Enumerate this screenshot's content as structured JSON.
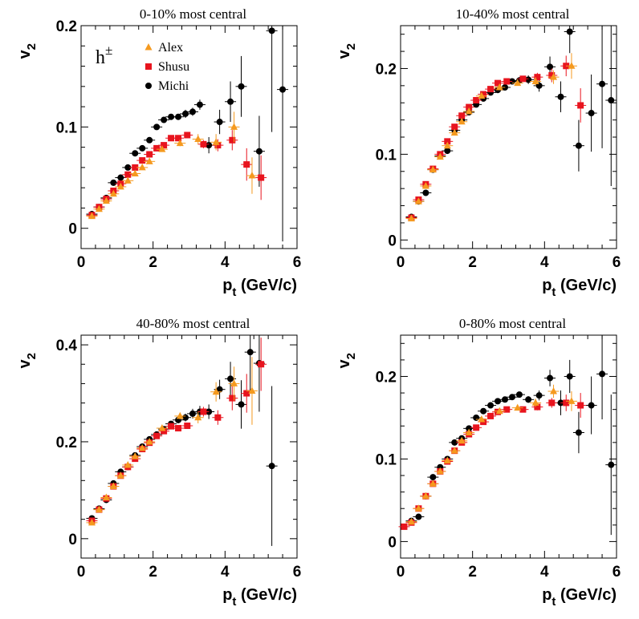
{
  "chart_data": [
    {
      "type": "scatter",
      "title": "0-10% most central",
      "xlabel": "p_t (GeV/c)",
      "ylabel": "v_2",
      "xlim": [
        0,
        6
      ],
      "ylim": [
        -0.02,
        0.2
      ],
      "xticks": [
        "0",
        "2",
        "4",
        "6"
      ],
      "yticks": [
        "0",
        "0.1",
        "0.2"
      ],
      "ytick_values": [
        0,
        0.1,
        0.2
      ],
      "annotation": "h±",
      "legend": {
        "position": "top-left",
        "entries": [
          "Alex",
          "Shusu",
          "Michi"
        ]
      },
      "series": [
        {
          "name": "Alex",
          "marker": "triangle",
          "color": "#f59a1f",
          "x": [
            0.3,
            0.5,
            0.7,
            0.9,
            1.1,
            1.3,
            1.5,
            1.7,
            1.9,
            2.25,
            2.75,
            3.25,
            3.75,
            4.25,
            4.75
          ],
          "y": [
            0.012,
            0.019,
            0.027,
            0.034,
            0.041,
            0.047,
            0.054,
            0.06,
            0.066,
            0.078,
            0.084,
            0.088,
            0.085,
            0.1,
            0.052
          ],
          "err": [
            0.001,
            0.001,
            0.001,
            0.001,
            0.001,
            0.001,
            0.001,
            0.001,
            0.002,
            0.002,
            0.003,
            0.005,
            0.008,
            0.015,
            0.018
          ]
        },
        {
          "name": "Shusu",
          "marker": "square",
          "color": "#e8141e",
          "x": [
            0.3,
            0.5,
            0.7,
            0.9,
            1.1,
            1.3,
            1.5,
            1.7,
            1.9,
            2.1,
            2.3,
            2.5,
            2.7,
            2.95,
            3.4,
            3.8,
            4.2,
            4.6,
            5.0
          ],
          "y": [
            0.013,
            0.021,
            0.029,
            0.037,
            0.044,
            0.053,
            0.06,
            0.067,
            0.073,
            0.079,
            0.082,
            0.089,
            0.089,
            0.092,
            0.083,
            0.082,
            0.087,
            0.063,
            0.05
          ],
          "err": [
            0.001,
            0.001,
            0.001,
            0.001,
            0.001,
            0.001,
            0.001,
            0.002,
            0.002,
            0.002,
            0.002,
            0.003,
            0.003,
            0.003,
            0.004,
            0.006,
            0.01,
            0.016,
            0.022
          ]
        },
        {
          "name": "Michi",
          "marker": "circle",
          "color": "#000000",
          "x": [
            0.3,
            0.5,
            0.7,
            0.9,
            1.1,
            1.3,
            1.5,
            1.7,
            1.9,
            2.1,
            2.3,
            2.5,
            2.7,
            2.9,
            3.1,
            3.3,
            3.55,
            3.85,
            4.15,
            4.45,
            4.95,
            5.3,
            5.6
          ],
          "y": [
            0.014,
            0.021,
            0.03,
            0.045,
            0.05,
            0.06,
            0.074,
            0.079,
            0.087,
            0.1,
            0.107,
            0.11,
            0.11,
            0.113,
            0.115,
            0.122,
            0.082,
            0.105,
            0.125,
            0.14,
            0.076,
            0.195,
            0.137
          ],
          "err": [
            0.001,
            0.001,
            0.001,
            0.001,
            0.001,
            0.001,
            0.002,
            0.002,
            0.002,
            0.002,
            0.002,
            0.003,
            0.003,
            0.004,
            0.004,
            0.005,
            0.008,
            0.012,
            0.02,
            0.03,
            0.035,
            0.1,
            0.15
          ]
        }
      ]
    },
    {
      "type": "scatter",
      "title": "10-40% most central",
      "xlabel": "p_t (GeV/c)",
      "ylabel": "v_2",
      "xlim": [
        0,
        6
      ],
      "ylim": [
        -0.01,
        0.25
      ],
      "xticks": [
        "0",
        "2",
        "4",
        "6"
      ],
      "yticks": [
        "0",
        "0.1",
        "0.2"
      ],
      "ytick_values": [
        0,
        0.1,
        0.2
      ],
      "series": [
        {
          "name": "Alex",
          "marker": "triangle",
          "color": "#f59a1f",
          "x": [
            0.3,
            0.5,
            0.7,
            0.9,
            1.1,
            1.3,
            1.5,
            1.7,
            1.9,
            2.25,
            2.75,
            3.25,
            3.75,
            4.25,
            4.75
          ],
          "y": [
            0.025,
            0.045,
            0.063,
            0.082,
            0.097,
            0.11,
            0.125,
            0.138,
            0.15,
            0.168,
            0.178,
            0.183,
            0.185,
            0.19,
            0.203
          ],
          "err": [
            0.001,
            0.001,
            0.001,
            0.001,
            0.001,
            0.001,
            0.002,
            0.002,
            0.002,
            0.002,
            0.002,
            0.003,
            0.005,
            0.008,
            0.015
          ]
        },
        {
          "name": "Shusu",
          "marker": "square",
          "color": "#e8141e",
          "x": [
            0.3,
            0.5,
            0.7,
            0.9,
            1.1,
            1.3,
            1.5,
            1.7,
            1.9,
            2.1,
            2.3,
            2.5,
            2.7,
            2.95,
            3.4,
            3.8,
            4.2,
            4.6,
            5.0
          ],
          "y": [
            0.026,
            0.047,
            0.065,
            0.083,
            0.1,
            0.115,
            0.132,
            0.145,
            0.155,
            0.163,
            0.17,
            0.176,
            0.183,
            0.185,
            0.188,
            0.19,
            0.192,
            0.203,
            0.157
          ],
          "err": [
            0.001,
            0.001,
            0.001,
            0.001,
            0.001,
            0.001,
            0.001,
            0.001,
            0.002,
            0.002,
            0.002,
            0.002,
            0.002,
            0.003,
            0.003,
            0.005,
            0.008,
            0.012,
            0.02
          ]
        },
        {
          "name": "Michi",
          "marker": "circle",
          "color": "#000000",
          "x": [
            0.3,
            0.5,
            0.7,
            0.9,
            1.1,
            1.3,
            1.5,
            1.7,
            1.9,
            2.1,
            2.3,
            2.5,
            2.7,
            2.9,
            3.1,
            3.3,
            3.55,
            3.85,
            4.15,
            4.45,
            4.7,
            4.95,
            5.3,
            5.6,
            5.85
          ],
          "y": [
            0.027,
            0.045,
            0.055,
            0.082,
            0.098,
            0.104,
            0.128,
            0.14,
            0.149,
            0.158,
            0.165,
            0.172,
            0.175,
            0.178,
            0.185,
            0.186,
            0.187,
            0.18,
            0.202,
            0.167,
            0.243,
            0.11,
            0.148,
            0.182,
            0.163
          ],
          "err": [
            0.001,
            0.001,
            0.001,
            0.001,
            0.001,
            0.001,
            0.001,
            0.001,
            0.002,
            0.002,
            0.002,
            0.002,
            0.002,
            0.003,
            0.003,
            0.004,
            0.005,
            0.007,
            0.012,
            0.018,
            0.025,
            0.03,
            0.045,
            0.075,
            0.1
          ]
        }
      ]
    },
    {
      "type": "scatter",
      "title": "40-80% most central",
      "xlabel": "p_t (GeV/c)",
      "ylabel": "v_2",
      "xlim": [
        0,
        6
      ],
      "ylim": [
        -0.04,
        0.42
      ],
      "xticks": [
        "0",
        "2",
        "4",
        "6"
      ],
      "yticks": [
        "0",
        "0.2",
        "0.4"
      ],
      "ytick_values": [
        0,
        0.2,
        0.4
      ],
      "series": [
        {
          "name": "Alex",
          "marker": "triangle",
          "color": "#f59a1f",
          "x": [
            0.3,
            0.5,
            0.7,
            0.9,
            1.1,
            1.3,
            1.5,
            1.7,
            1.9,
            2.25,
            2.75,
            3.25,
            3.75,
            4.25,
            4.75
          ],
          "y": [
            0.033,
            0.06,
            0.085,
            0.108,
            0.13,
            0.152,
            0.17,
            0.187,
            0.2,
            0.228,
            0.253,
            0.25,
            0.303,
            0.32,
            0.305
          ],
          "err": [
            0.001,
            0.002,
            0.002,
            0.002,
            0.003,
            0.003,
            0.003,
            0.004,
            0.004,
            0.005,
            0.007,
            0.012,
            0.02,
            0.035,
            0.07
          ]
        },
        {
          "name": "Shusu",
          "marker": "square",
          "color": "#e8141e",
          "x": [
            0.3,
            0.5,
            0.7,
            0.9,
            1.1,
            1.3,
            1.5,
            1.7,
            1.9,
            2.1,
            2.3,
            2.5,
            2.7,
            2.95,
            3.4,
            3.8,
            4.2,
            4.6,
            5.0
          ],
          "y": [
            0.037,
            0.06,
            0.083,
            0.108,
            0.13,
            0.148,
            0.165,
            0.185,
            0.198,
            0.212,
            0.222,
            0.232,
            0.228,
            0.233,
            0.262,
            0.25,
            0.29,
            0.3,
            0.36
          ],
          "err": [
            0.001,
            0.001,
            0.002,
            0.002,
            0.002,
            0.002,
            0.003,
            0.003,
            0.003,
            0.004,
            0.004,
            0.005,
            0.005,
            0.006,
            0.01,
            0.015,
            0.025,
            0.04,
            0.055
          ]
        },
        {
          "name": "Michi",
          "marker": "circle",
          "color": "#000000",
          "x": [
            0.3,
            0.5,
            0.7,
            0.9,
            1.1,
            1.3,
            1.5,
            1.7,
            1.9,
            2.1,
            2.3,
            2.5,
            2.7,
            2.9,
            3.1,
            3.3,
            3.55,
            3.85,
            4.15,
            4.45,
            4.7,
            4.95,
            5.3
          ],
          "y": [
            0.042,
            0.062,
            0.08,
            0.114,
            0.138,
            0.148,
            0.172,
            0.19,
            0.205,
            0.215,
            0.226,
            0.237,
            0.245,
            0.25,
            0.258,
            0.262,
            0.262,
            0.308,
            0.33,
            0.277,
            0.385,
            0.362,
            0.15
          ],
          "err": [
            0.001,
            0.002,
            0.002,
            0.002,
            0.003,
            0.003,
            0.003,
            0.004,
            0.004,
            0.005,
            0.005,
            0.006,
            0.007,
            0.008,
            0.01,
            0.012,
            0.015,
            0.02,
            0.035,
            0.05,
            0.08,
            0.1,
            0.165
          ]
        }
      ]
    },
    {
      "type": "scatter",
      "title": "0-80% most central",
      "xlabel": "p_t (GeV/c)",
      "ylabel": "v_2",
      "xlim": [
        0,
        6
      ],
      "ylim": [
        -0.02,
        0.25
      ],
      "xticks": [
        "0",
        "2",
        "4",
        "6"
      ],
      "yticks": [
        "0",
        "0.1",
        "0.2"
      ],
      "ytick_values": [
        0,
        0.1,
        0.2
      ],
      "series": [
        {
          "name": "Alex",
          "marker": "triangle",
          "color": "#f59a1f",
          "x": [
            0.3,
            0.5,
            0.7,
            0.9,
            1.1,
            1.3,
            1.5,
            1.7,
            1.9,
            2.25,
            2.75,
            3.25,
            3.75,
            4.25,
            4.75
          ],
          "y": [
            0.024,
            0.04,
            0.055,
            0.07,
            0.085,
            0.098,
            0.11,
            0.122,
            0.132,
            0.148,
            0.158,
            0.162,
            0.168,
            0.182,
            0.17
          ],
          "err": [
            0.001,
            0.001,
            0.001,
            0.001,
            0.001,
            0.001,
            0.001,
            0.001,
            0.002,
            0.002,
            0.002,
            0.003,
            0.005,
            0.008,
            0.012
          ]
        },
        {
          "name": "Shusu",
          "marker": "square",
          "color": "#e8141e",
          "x": [
            0.1,
            0.3,
            0.5,
            0.7,
            0.9,
            1.1,
            1.3,
            1.5,
            1.7,
            1.9,
            2.1,
            2.3,
            2.5,
            2.7,
            2.95,
            3.4,
            3.8,
            4.2,
            4.6,
            5.0
          ],
          "y": [
            0.018,
            0.023,
            0.04,
            0.055,
            0.07,
            0.085,
            0.097,
            0.11,
            0.12,
            0.13,
            0.138,
            0.145,
            0.152,
            0.157,
            0.16,
            0.16,
            0.163,
            0.168,
            0.168,
            0.165
          ],
          "err": [
            0.001,
            0.001,
            0.001,
            0.001,
            0.001,
            0.001,
            0.001,
            0.001,
            0.001,
            0.001,
            0.002,
            0.002,
            0.002,
            0.002,
            0.002,
            0.003,
            0.004,
            0.006,
            0.01,
            0.015
          ]
        },
        {
          "name": "Michi",
          "marker": "circle",
          "color": "#000000",
          "x": [
            0.3,
            0.5,
            0.7,
            0.9,
            1.1,
            1.3,
            1.5,
            1.7,
            1.9,
            2.1,
            2.3,
            2.5,
            2.7,
            2.9,
            3.1,
            3.3,
            3.55,
            3.85,
            4.15,
            4.45,
            4.7,
            4.95,
            5.3,
            5.6,
            5.85
          ],
          "y": [
            0.025,
            0.03,
            0.055,
            0.078,
            0.09,
            0.1,
            0.12,
            0.125,
            0.137,
            0.15,
            0.158,
            0.165,
            0.17,
            0.172,
            0.175,
            0.178,
            0.172,
            0.177,
            0.198,
            0.168,
            0.2,
            0.132,
            0.165,
            0.203,
            0.093
          ],
          "err": [
            0.001,
            0.001,
            0.001,
            0.001,
            0.001,
            0.001,
            0.001,
            0.001,
            0.002,
            0.002,
            0.002,
            0.002,
            0.002,
            0.003,
            0.003,
            0.003,
            0.004,
            0.006,
            0.01,
            0.015,
            0.02,
            0.025,
            0.035,
            0.055,
            0.085
          ]
        }
      ]
    }
  ]
}
